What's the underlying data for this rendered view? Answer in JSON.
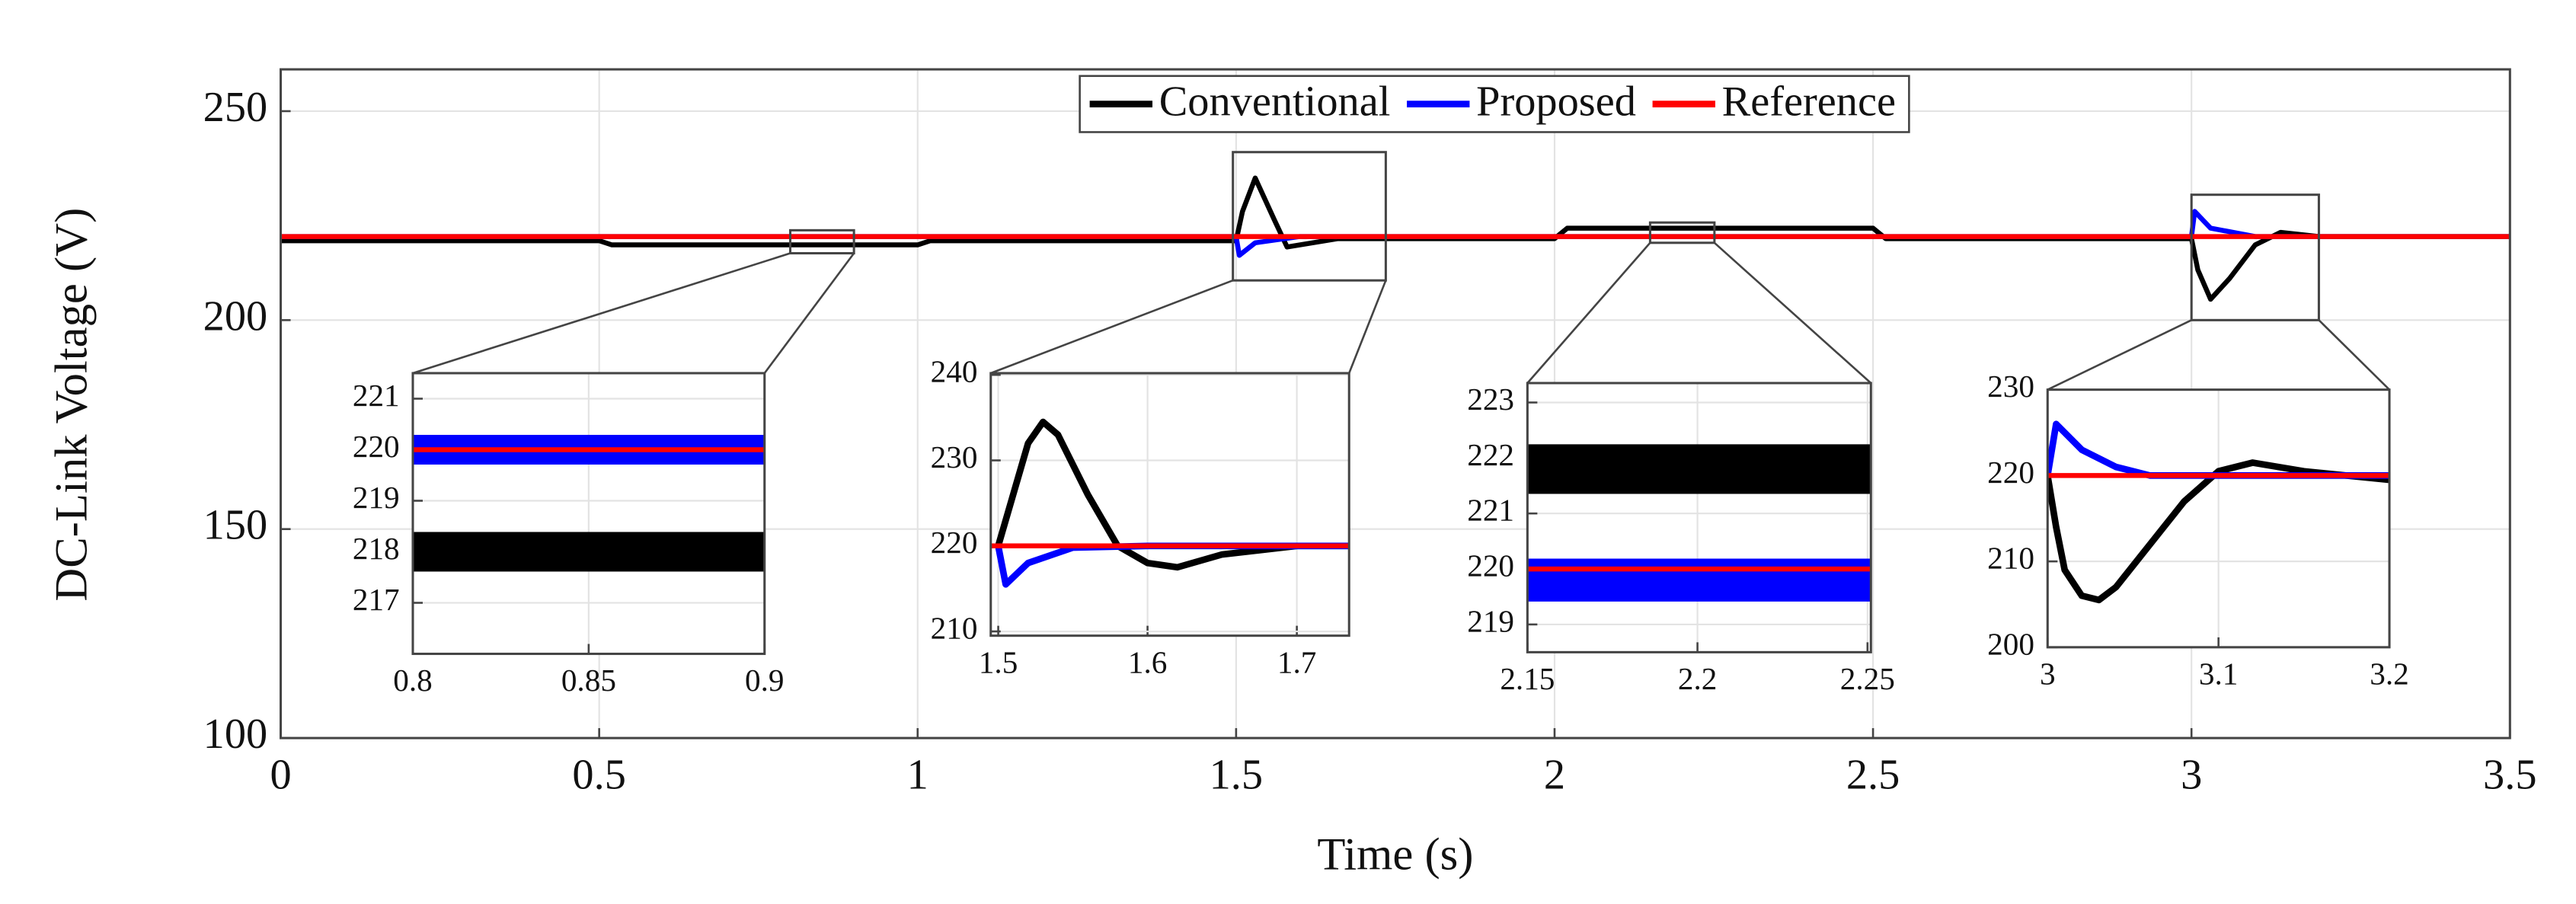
{
  "chart_data": [
    {
      "type": "line",
      "xlabel": "Time (s)",
      "ylabel": "DC-Link Voltage (V)",
      "xlim": [
        0,
        3.5
      ],
      "ylim": [
        100,
        260
      ],
      "xticks": [
        0,
        0.5,
        1,
        1.5,
        2,
        2.5,
        3,
        3.5
      ],
      "yticks": [
        100,
        150,
        200,
        250
      ],
      "grid": true,
      "legend": "top",
      "series": [
        {
          "name": "Conventional",
          "color": "#000000",
          "x": [
            0,
            0.5,
            0.52,
            1.0,
            1.02,
            1.5,
            1.51,
            1.53,
            1.56,
            1.58,
            1.62,
            1.66,
            2.0,
            2.02,
            2.5,
            2.52,
            3.0,
            3.01,
            3.03,
            3.06,
            3.1,
            3.14,
            3.2,
            3.5
          ],
          "values": [
            219,
            219,
            218,
            218,
            219,
            219,
            226,
            234,
            224,
            217.5,
            218.5,
            219.5,
            219.5,
            222,
            222,
            219.5,
            219.5,
            212,
            205,
            210,
            218,
            221,
            220,
            220
          ]
        },
        {
          "name": "Proposed",
          "color": "#0000ff",
          "x": [
            0,
            1.5,
            1.505,
            1.53,
            1.6,
            3.0,
            3.005,
            3.03,
            3.1,
            3.5
          ],
          "values": [
            220,
            220,
            215.5,
            218.5,
            220,
            220,
            226,
            222,
            220,
            220
          ]
        },
        {
          "name": "Reference",
          "color": "#ff0000",
          "x": [
            0,
            3.5
          ],
          "values": [
            220,
            220
          ]
        }
      ]
    },
    {
      "type": "line",
      "xlim": [
        0.8,
        0.9
      ],
      "ylim": [
        216,
        221.5
      ],
      "xticks": [
        0.8,
        0.85,
        0.9
      ],
      "yticks": [
        217,
        218,
        219,
        220,
        221
      ],
      "grid": true,
      "series": [
        {
          "color": "#000000",
          "x": [
            0.8,
            0.9
          ],
          "values": [
            218,
            218
          ]
        },
        {
          "color": "#0000ff",
          "x": [
            0.8,
            0.9
          ],
          "values": [
            220,
            220
          ]
        },
        {
          "color": "#ff0000",
          "x": [
            0.8,
            0.9
          ],
          "values": [
            220,
            220
          ]
        }
      ]
    },
    {
      "type": "line",
      "xlim": [
        1.495,
        1.735
      ],
      "ylim": [
        209.5,
        240.2
      ],
      "xticks": [
        1.5,
        1.6,
        1.7
      ],
      "yticks": [
        210,
        220,
        230,
        240
      ],
      "grid": true,
      "series": [
        {
          "color": "#000000",
          "x": [
            1.5,
            1.51,
            1.52,
            1.53,
            1.54,
            1.56,
            1.58,
            1.6,
            1.62,
            1.65,
            1.7,
            1.735
          ],
          "values": [
            220,
            226,
            232,
            234.5,
            233,
            226,
            220,
            218,
            217.5,
            219,
            220,
            220
          ]
        },
        {
          "color": "#0000ff",
          "x": [
            1.5,
            1.505,
            1.52,
            1.55,
            1.6,
            1.735
          ],
          "values": [
            220,
            215.5,
            218,
            219.8,
            220,
            220
          ]
        },
        {
          "color": "#ff0000",
          "x": [
            1.495,
            1.735
          ],
          "values": [
            220,
            220
          ]
        }
      ]
    },
    {
      "type": "line",
      "xlim": [
        2.15,
        2.251
      ],
      "ylim": [
        218.5,
        223.35
      ],
      "xticks": [
        2.15,
        2.2,
        2.25
      ],
      "yticks": [
        219,
        220,
        221,
        222,
        223
      ],
      "grid": true,
      "series": [
        {
          "color": "#000000",
          "x": [
            2.15,
            2.251
          ],
          "values": [
            221.8,
            221.8
          ]
        },
        {
          "color": "#0000ff",
          "x": [
            2.15,
            2.251
          ],
          "values": [
            219.8,
            219.8
          ]
        },
        {
          "color": "#ff0000",
          "x": [
            2.15,
            2.251
          ],
          "values": [
            220,
            220
          ]
        }
      ]
    },
    {
      "type": "line",
      "xlim": [
        3,
        3.2
      ],
      "ylim": [
        200,
        230
      ],
      "xticks": [
        3,
        3.1,
        3.2
      ],
      "yticks": [
        200,
        210,
        220,
        230
      ],
      "grid": true,
      "series": [
        {
          "color": "#000000",
          "x": [
            3.0,
            3.005,
            3.01,
            3.02,
            3.03,
            3.04,
            3.06,
            3.08,
            3.1,
            3.12,
            3.15,
            3.2
          ],
          "values": [
            220,
            214,
            209,
            206,
            205.5,
            207,
            212,
            217,
            220.5,
            221.5,
            220.5,
            219.5
          ]
        },
        {
          "color": "#0000ff",
          "x": [
            3.0,
            3.005,
            3.02,
            3.04,
            3.06,
            3.2
          ],
          "values": [
            220,
            226,
            223,
            221,
            220,
            220
          ]
        },
        {
          "color": "#ff0000",
          "x": [
            3,
            3.2
          ],
          "values": [
            220,
            220
          ]
        }
      ]
    }
  ]
}
